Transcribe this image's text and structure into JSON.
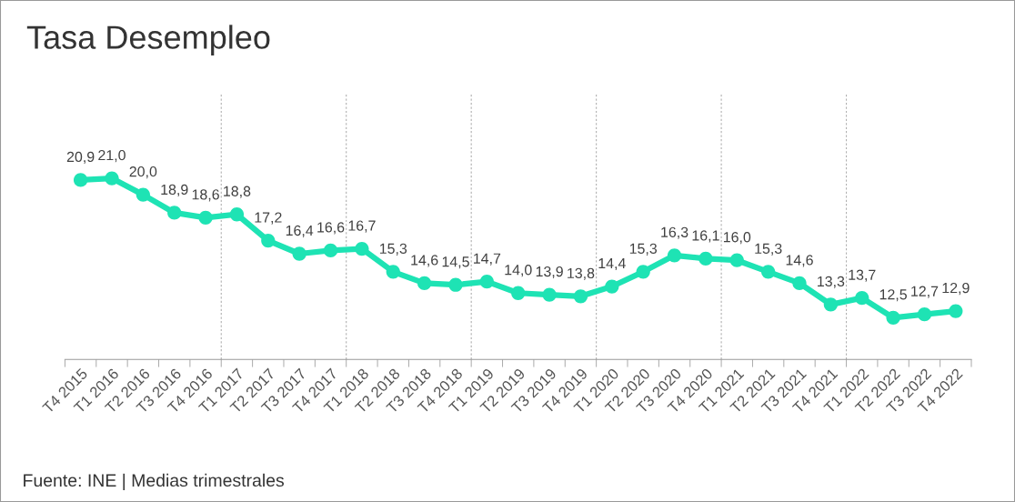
{
  "chart_data": {
    "type": "line",
    "title": "Tasa Desempleo",
    "categories": [
      "T4 2015",
      "T1 2016",
      "T2 2016",
      "T3 2016",
      "T4 2016",
      "T1 2017",
      "T2 2017",
      "T3 2017",
      "T4 2017",
      "T1 2018",
      "T2 2018",
      "T3 2018",
      "T4 2018",
      "T1 2019",
      "T2 2019",
      "T3 2019",
      "T4 2019",
      "T1 2020",
      "T2 2020",
      "T3 2020",
      "T4 2020",
      "T1 2021",
      "T2 2021",
      "T3 2021",
      "T4 2021",
      "T1 2022",
      "T2 2022",
      "T3 2022",
      "T4 2022"
    ],
    "values": [
      20.9,
      21.0,
      20.0,
      18.9,
      18.6,
      18.8,
      17.2,
      16.4,
      16.6,
      16.7,
      15.3,
      14.6,
      14.5,
      14.7,
      14.0,
      13.9,
      13.8,
      14.4,
      15.3,
      16.3,
      16.1,
      16.0,
      15.3,
      14.6,
      13.3,
      13.7,
      12.5,
      12.7,
      12.9
    ],
    "value_labels": [
      "20,9",
      "21,0",
      "20,0",
      "18,9",
      "18,6",
      "18,8",
      "17,2",
      "16,4",
      "16,6",
      "16,7",
      "15,3",
      "14,6",
      "14,5",
      "14,7",
      "14,0",
      "13,9",
      "13,8",
      "14,4",
      "15,3",
      "16,3",
      "16,1",
      "16,0",
      "15,3",
      "14,6",
      "13,3",
      "13,7",
      "12,5",
      "12,7",
      "12,9"
    ],
    "color": "#1ee3b4",
    "marker": "circle",
    "line_style": "solid",
    "tick_labels": "x",
    "annotations": [
      "Fuente: INE | Medias trimestrales"
    ]
  }
}
